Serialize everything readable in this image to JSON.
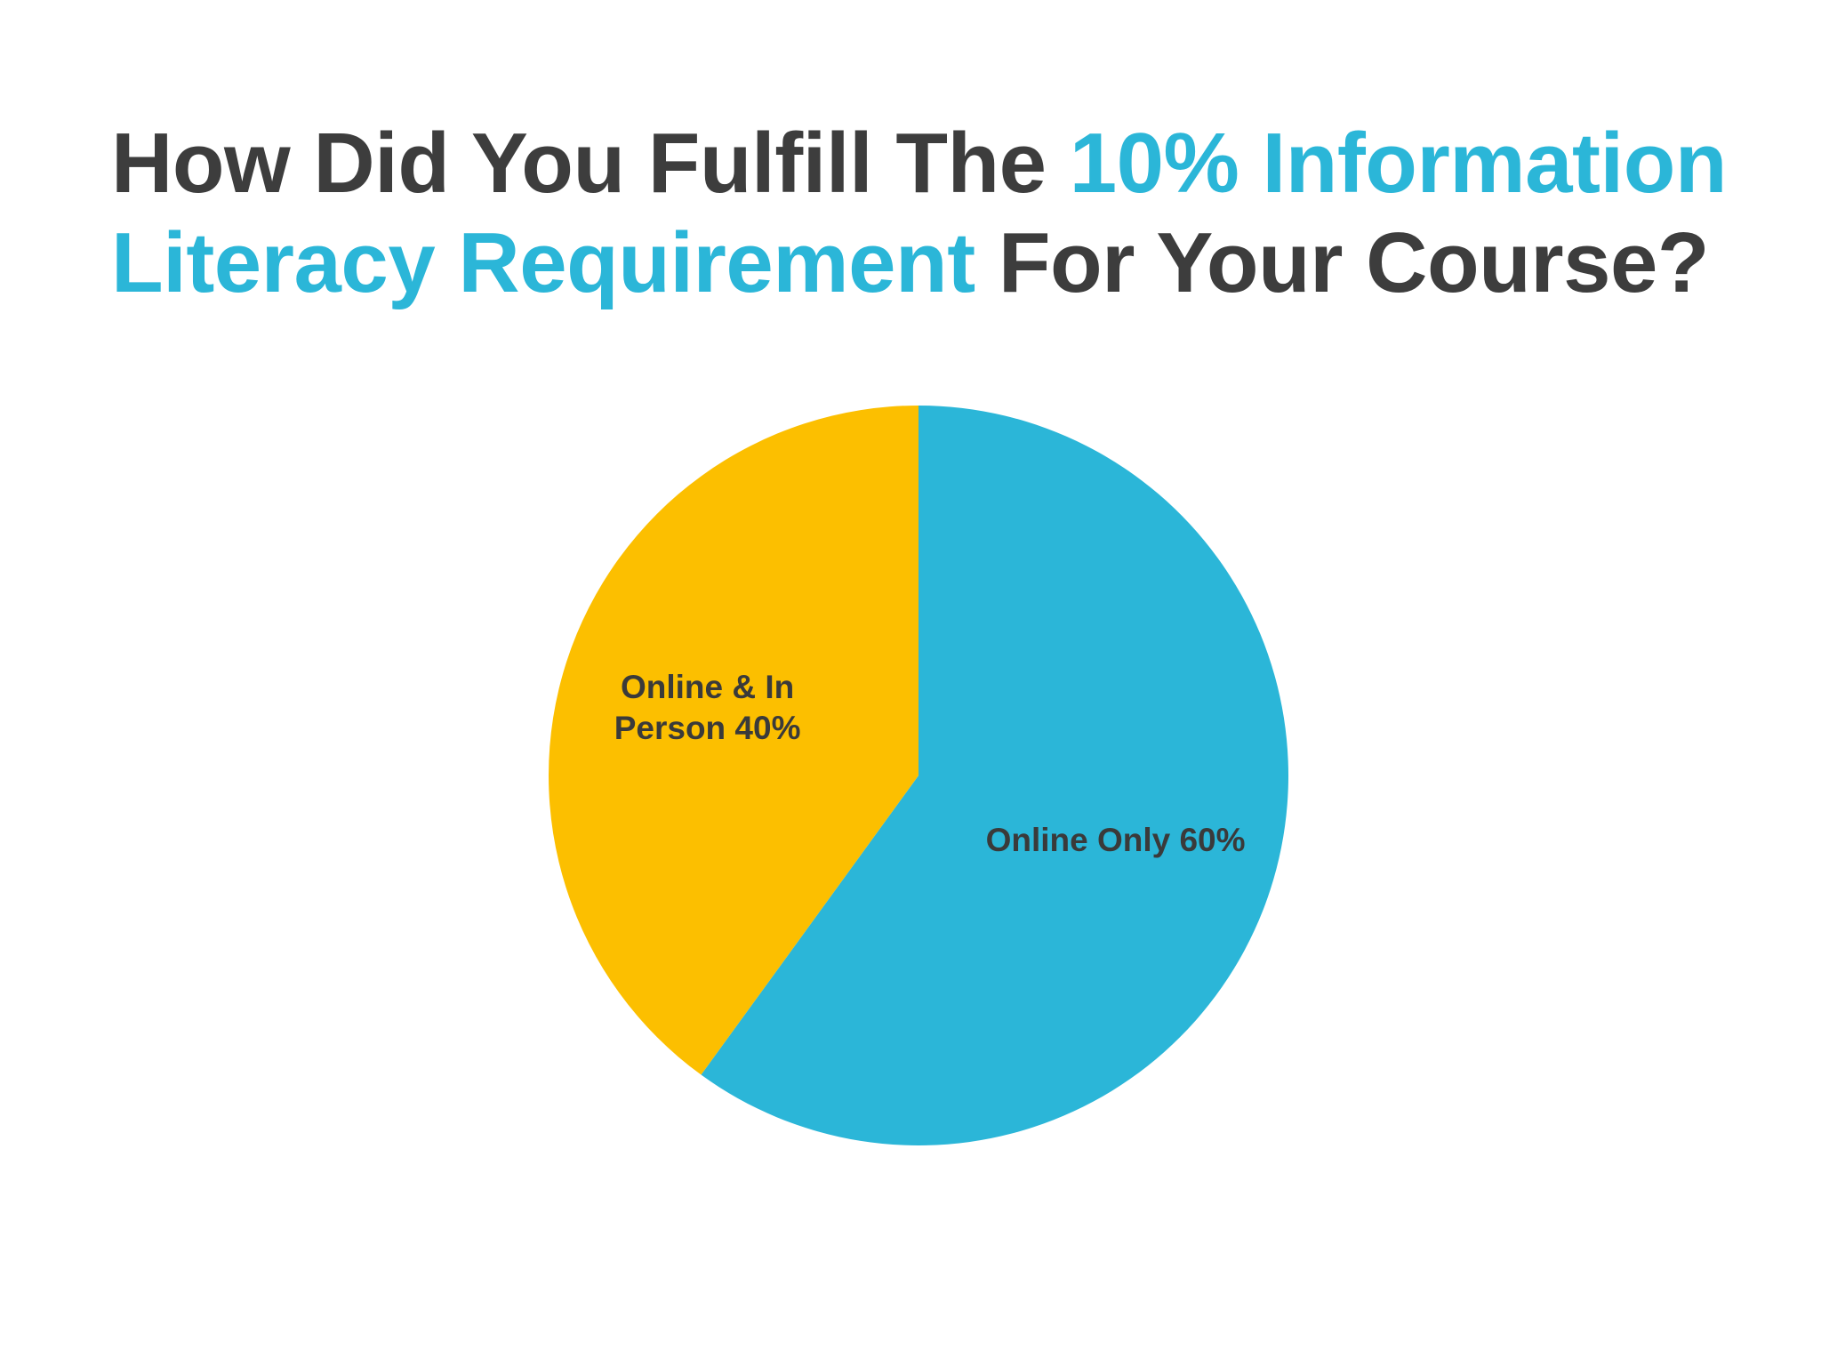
{
  "title": {
    "part1": "How Did You Fulfill The ",
    "part2": "10% Information Literacy Requirement",
    "part3": " For Your Course?"
  },
  "colors": {
    "title_dark": "#3d3d3d",
    "title_accent": "#2bb6d8",
    "online_only": "#2bb6d8",
    "online_in_person": "#fcbf00",
    "label_text": "#3a3a3a"
  },
  "chart_data": {
    "type": "pie",
    "title": "How Did You Fulfill The 10% Information Literacy Requirement For Your Course?",
    "slices": [
      {
        "label_lines": [
          "Online Only 60%"
        ],
        "category": "Online Only",
        "value": 60,
        "color": "#2bb6d8"
      },
      {
        "label_lines": [
          "Online & In",
          "Person 40%"
        ],
        "category": "Online & In Person",
        "value": 40,
        "color": "#fcbf00"
      }
    ],
    "start": "12 o'clock",
    "direction": "clockwise",
    "legend": "none",
    "data_labels": "inside"
  }
}
